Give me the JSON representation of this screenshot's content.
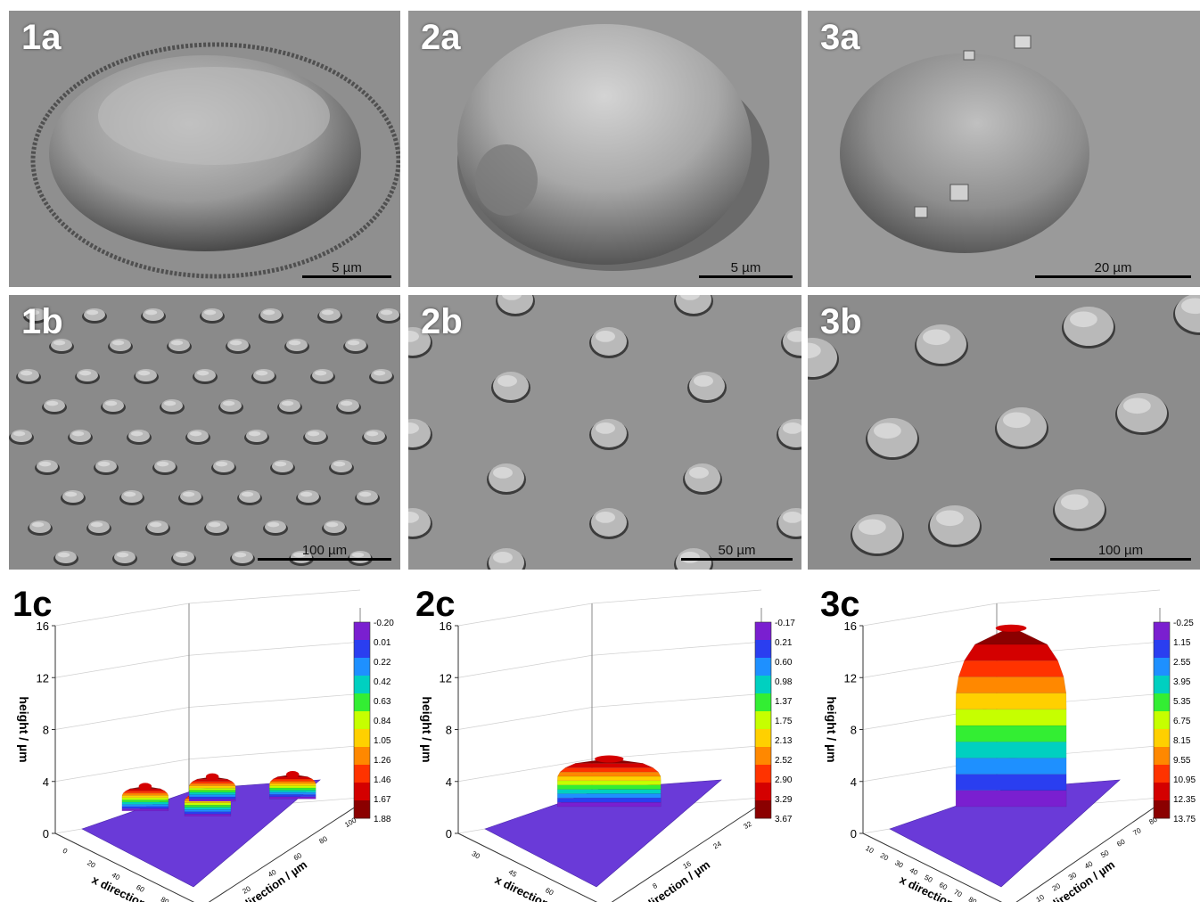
{
  "sem_panels": [
    {
      "label": "1a",
      "scale": "5 µm"
    },
    {
      "label": "2a",
      "scale": "5 µm"
    },
    {
      "label": "3a",
      "scale": "20 µm"
    },
    {
      "label": "1b",
      "scale": "100 µm"
    },
    {
      "label": "2b",
      "scale": "50 µm"
    },
    {
      "label": "3b",
      "scale": "100 µm"
    }
  ],
  "chart_data": [
    {
      "type": "surface3d",
      "label": "1c",
      "zlabel": "height / µm",
      "xlabel": "x direction / µm",
      "ylabel": "y direction / µm",
      "zticks": [
        "0",
        "4",
        "8",
        "12",
        "16"
      ],
      "zlim": [
        0,
        16
      ],
      "xticks": [
        "0",
        "20",
        "40",
        "60",
        "80",
        "100"
      ],
      "yticks": [
        "0",
        "20",
        "40",
        "60",
        "80",
        "100"
      ],
      "colorbar": [
        "-0.20",
        "0.01",
        "0.22",
        "0.42",
        "0.63",
        "0.84",
        "1.05",
        "1.26",
        "1.46",
        "1.67",
        "1.88"
      ],
      "features": [
        {
          "name": "dome",
          "peak_height": 1.88
        },
        {
          "name": "dome",
          "peak_height": 1.88
        },
        {
          "name": "dome",
          "peak_height": 1.88
        },
        {
          "name": "dome",
          "peak_height": 1.88
        }
      ]
    },
    {
      "type": "surface3d",
      "label": "2c",
      "zlabel": "height / µm",
      "xlabel": "x direction / µm",
      "ylabel": "y direction / µm",
      "zticks": [
        "0",
        "4",
        "8",
        "12",
        "16"
      ],
      "zlim": [
        0,
        16
      ],
      "xticks": [
        "30",
        "45",
        "60",
        "75"
      ],
      "yticks": [
        "0",
        "8",
        "16",
        "24",
        "32"
      ],
      "colorbar": [
        "-0.17",
        "0.21",
        "0.60",
        "0.98",
        "1.37",
        "1.75",
        "2.13",
        "2.52",
        "2.90",
        "3.29",
        "3.67"
      ],
      "features": [
        {
          "name": "dome",
          "peak_height": 3.67
        }
      ]
    },
    {
      "type": "surface3d",
      "label": "3c",
      "zlabel": "height / µm",
      "xlabel": "x direction / µm",
      "ylabel": "y direction / µm",
      "zticks": [
        "0",
        "4",
        "8",
        "12",
        "16"
      ],
      "zlim": [
        0,
        16
      ],
      "xticks": [
        "10",
        "20",
        "30",
        "40",
        "50",
        "60",
        "70",
        "80",
        "90",
        "100"
      ],
      "yticks": [
        "0",
        "10",
        "20",
        "30",
        "40",
        "50",
        "60",
        "70",
        "80"
      ],
      "colorbar": [
        "-0.25",
        "1.15",
        "2.55",
        "3.95",
        "5.35",
        "6.75",
        "8.15",
        "9.55",
        "10.95",
        "12.35",
        "13.75"
      ],
      "features": [
        {
          "name": "dome",
          "peak_height": 13.75
        }
      ]
    }
  ]
}
